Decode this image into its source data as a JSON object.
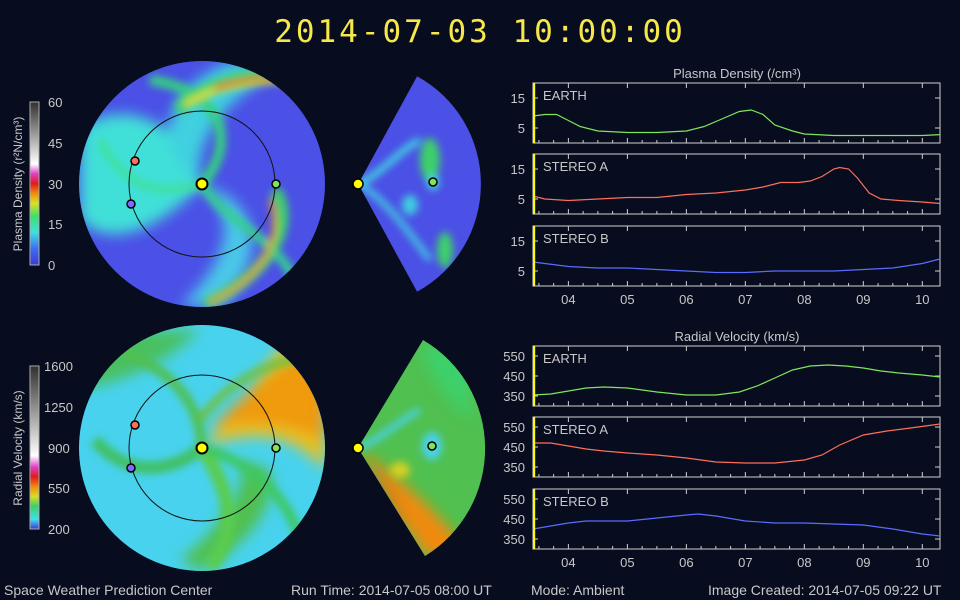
{
  "title": "2014-07-03  10:00:00",
  "footer": {
    "center": "Space Weather Prediction Center",
    "run_time": "Run Time: 2014-07-05 08:00 UT",
    "mode": "Mode: Ambient",
    "created": "Image Created: 2014-07-05 09:22 UT"
  },
  "colorbars": [
    {
      "label": "Plasma Density (r²N/cm³)",
      "ticks": [
        "60",
        "45",
        "30",
        "15",
        "0"
      ]
    },
    {
      "label": "Radial Velocity (km/s)",
      "ticks": [
        "1600",
        "1250",
        "900",
        "550",
        "200"
      ]
    }
  ],
  "colors": {
    "earth": "#7fe65a",
    "stereo_a": "#ff6e5a",
    "stereo_b": "#5a6cff",
    "marker": "#ffff00",
    "axes": "#d0d0d0"
  },
  "chart_data": [
    {
      "type": "line",
      "title": "Plasma Density (/cm³)",
      "x_ticks": [
        "04",
        "05",
        "06",
        "07",
        "08",
        "09",
        "10"
      ],
      "xlim": [
        3.4,
        10.3
      ],
      "current_time": 3.42,
      "panels": [
        {
          "name": "EARTH",
          "ylim": [
            0,
            20
          ],
          "y_ticks": [
            5,
            15
          ],
          "x": [
            3.4,
            3.6,
            3.8,
            4.0,
            4.2,
            4.5,
            5.0,
            5.5,
            6.0,
            6.3,
            6.6,
            6.9,
            7.1,
            7.3,
            7.5,
            7.8,
            8.0,
            8.5,
            9.0,
            9.5,
            10.0,
            10.3
          ],
          "y": [
            9,
            9.5,
            9.5,
            7.5,
            5.5,
            4,
            3.5,
            3.5,
            4,
            5.5,
            8,
            10.5,
            11,
            9.5,
            6,
            4,
            3,
            2.5,
            2.5,
            2.5,
            2.5,
            2.8
          ]
        },
        {
          "name": "STEREO A",
          "ylim": [
            0,
            20
          ],
          "y_ticks": [
            5,
            15
          ],
          "x": [
            3.4,
            3.6,
            4.0,
            4.5,
            5.0,
            5.5,
            6.0,
            6.5,
            7.0,
            7.3,
            7.6,
            7.9,
            8.1,
            8.3,
            8.5,
            8.6,
            8.75,
            8.9,
            9.1,
            9.3,
            9.6,
            10.0,
            10.3
          ],
          "y": [
            6,
            5,
            4.5,
            5,
            5.5,
            5.5,
            6.5,
            7,
            8,
            9,
            10.5,
            10.5,
            11,
            12.5,
            15,
            15.5,
            15,
            12,
            7,
            5,
            4.5,
            4,
            3.5
          ]
        },
        {
          "name": "STEREO B",
          "ylim": [
            0,
            20
          ],
          "y_ticks": [
            5,
            15
          ],
          "x": [
            3.4,
            3.6,
            4.0,
            4.5,
            5.0,
            5.5,
            6.0,
            6.5,
            7.0,
            7.5,
            8.0,
            8.5,
            9.0,
            9.5,
            10.0,
            10.3
          ],
          "y": [
            8,
            7.5,
            6.5,
            6,
            6,
            5.5,
            5,
            4.5,
            4.5,
            5,
            5,
            5,
            5.5,
            6,
            7.5,
            9
          ]
        }
      ]
    },
    {
      "type": "line",
      "title": "Radial Velocity (km/s)",
      "x_ticks": [
        "04",
        "05",
        "06",
        "07",
        "08",
        "09",
        "10"
      ],
      "xlim": [
        3.4,
        10.3
      ],
      "current_time": 3.42,
      "panels": [
        {
          "name": "EARTH",
          "ylim": [
            300,
            600
          ],
          "y_ticks": [
            350,
            450,
            550
          ],
          "x": [
            3.4,
            3.7,
            4.0,
            4.3,
            4.6,
            5.0,
            5.5,
            6.0,
            6.5,
            6.9,
            7.2,
            7.5,
            7.8,
            8.1,
            8.4,
            8.7,
            9.0,
            9.3,
            9.6,
            10.0,
            10.3
          ],
          "y": [
            355,
            360,
            375,
            390,
            395,
            390,
            370,
            355,
            355,
            370,
            400,
            440,
            480,
            500,
            505,
            500,
            490,
            475,
            465,
            455,
            445
          ]
        },
        {
          "name": "STEREO A",
          "ylim": [
            300,
            600
          ],
          "y_ticks": [
            350,
            450,
            550
          ],
          "x": [
            3.4,
            3.7,
            4.0,
            4.3,
            4.6,
            5.0,
            5.5,
            6.0,
            6.5,
            7.0,
            7.5,
            8.0,
            8.3,
            8.6,
            9.0,
            9.4,
            9.8,
            10.3
          ],
          "y": [
            470,
            470,
            455,
            440,
            430,
            420,
            410,
            395,
            375,
            370,
            370,
            385,
            410,
            460,
            510,
            530,
            545,
            565
          ]
        },
        {
          "name": "STEREO B",
          "ylim": [
            300,
            600
          ],
          "y_ticks": [
            350,
            450,
            550
          ],
          "x": [
            3.4,
            3.7,
            4.0,
            4.3,
            4.7,
            5.0,
            5.5,
            6.0,
            6.2,
            6.5,
            7.0,
            7.5,
            8.0,
            8.5,
            9.0,
            9.5,
            10.0,
            10.3
          ],
          "y": [
            400,
            415,
            430,
            440,
            440,
            440,
            455,
            470,
            475,
            465,
            440,
            430,
            430,
            425,
            420,
            400,
            375,
            365
          ]
        }
      ]
    }
  ]
}
